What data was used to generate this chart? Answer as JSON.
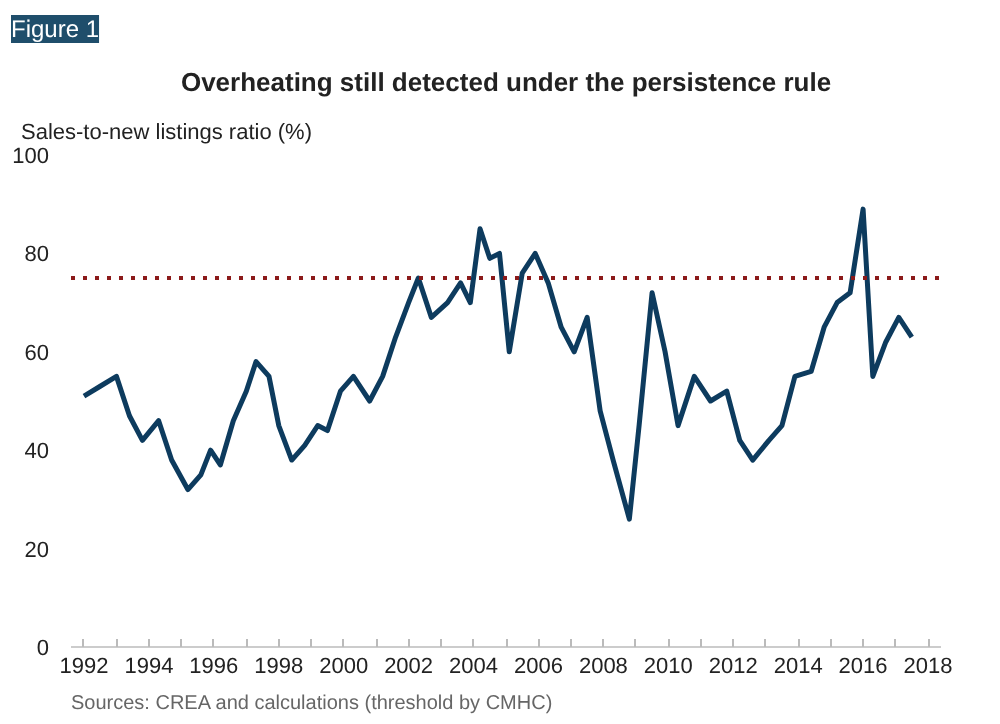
{
  "chart_data": {
    "type": "line",
    "title": "Overheating still detected under the persistence rule",
    "ylabel": "Sales-to-new listings ratio (%)",
    "annotations": [
      "Figure 1",
      "Sources: CREA and calculations (threshold by CMHC)"
    ],
    "x": [
      1992.0,
      1992.5,
      1993.0,
      1993.4,
      1993.8,
      1994.3,
      1994.7,
      1995.2,
      1995.6,
      1995.9,
      1996.2,
      1996.6,
      1997.0,
      1997.3,
      1997.7,
      1998.0,
      1998.4,
      1998.8,
      1999.2,
      1999.5,
      1999.9,
      2000.3,
      2000.8,
      2001.2,
      2001.6,
      2002.0,
      2002.3,
      2002.7,
      2003.2,
      2003.6,
      2003.9,
      2004.2,
      2004.5,
      2004.8,
      2005.1,
      2005.5,
      2005.9,
      2006.3,
      2006.7,
      2007.1,
      2007.5,
      2007.9,
      2008.3,
      2008.8,
      2009.1,
      2009.5,
      2009.9,
      2010.3,
      2010.8,
      2011.3,
      2011.8,
      2012.2,
      2012.6,
      2013.1,
      2013.5,
      2013.9,
      2014.4,
      2014.8,
      2015.2,
      2015.6,
      2016.0,
      2016.3,
      2016.7,
      2017.1,
      2017.5
    ],
    "series": [
      {
        "color": "#0d3b5e",
        "values": [
          51,
          53,
          55,
          47,
          42,
          46,
          38,
          32,
          35,
          40,
          37,
          46,
          52,
          58,
          55,
          45,
          38,
          41,
          45,
          44,
          52,
          55,
          50,
          55,
          63,
          70,
          75,
          67,
          70,
          74,
          70,
          85,
          79,
          80,
          60,
          76,
          80,
          74,
          65,
          60,
          67,
          48,
          38,
          26,
          45,
          72,
          60,
          45,
          55,
          50,
          52,
          42,
          38,
          42,
          45,
          55,
          56,
          65,
          70,
          72,
          89,
          55,
          62,
          67,
          63
        ]
      }
    ],
    "ylim": [
      0,
      100
    ],
    "yticks": [
      0,
      20,
      40,
      60,
      80,
      100
    ],
    "xlim": [
      1991.6,
      2018.4
    ],
    "xticks": [
      1992,
      {
        "value": 1993,
        "label": null
      },
      1994,
      {
        "value": 1995,
        "label": null
      },
      1996,
      {
        "value": 1997,
        "label": null
      },
      1998,
      {
        "value": 1999,
        "label": null
      },
      2000,
      {
        "value": 2001,
        "label": null
      },
      2002,
      {
        "value": 2003,
        "label": null
      },
      2004,
      {
        "value": 2005,
        "label": null
      },
      2006,
      {
        "value": 2007,
        "label": null
      },
      2008,
      {
        "value": 2009,
        "label": null
      },
      2010,
      {
        "value": 2011,
        "label": null
      },
      2012,
      {
        "value": 2013,
        "label": null
      },
      2014,
      {
        "value": 2015,
        "label": null
      },
      2016,
      {
        "value": 2017,
        "label": null
      },
      2018
    ],
    "ref_lines": [
      {
        "axis": "y",
        "value": 75,
        "label": null,
        "color": "#8b1a1a",
        "line_style": "dotted"
      }
    ],
    "grid": false,
    "marker": "none",
    "line_style": "solid"
  }
}
